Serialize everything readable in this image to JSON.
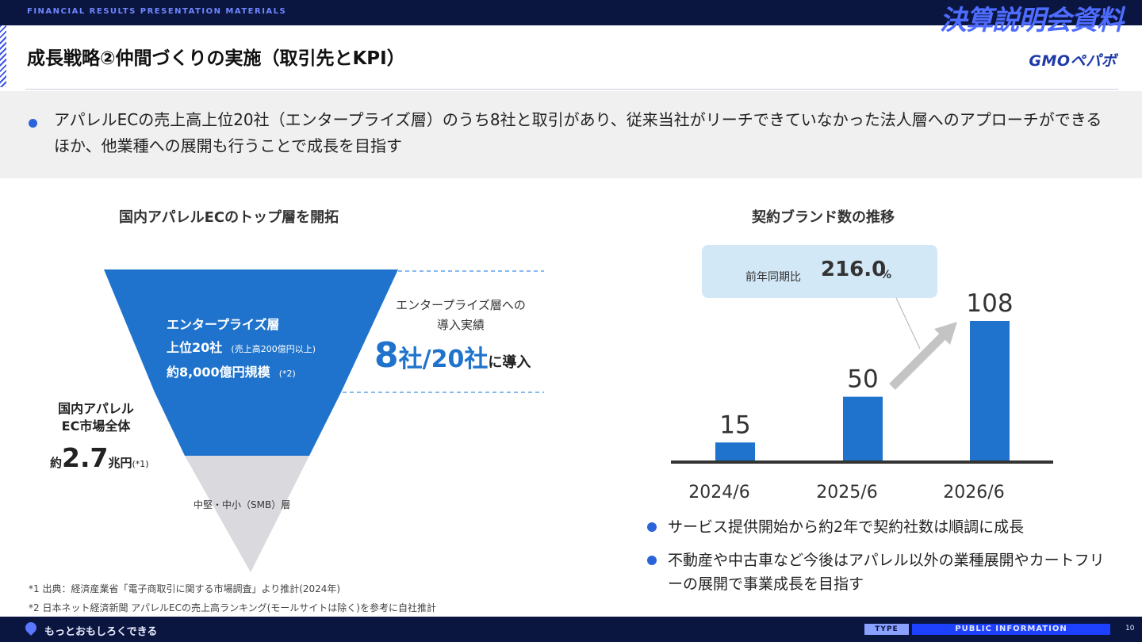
{
  "header": {
    "top_label": "FINANCIAL RESULTS PRESENTATION MATERIALS",
    "top_right": "決算説明会資料",
    "title": "成長戦略②仲間づくりの実施（取引先とKPI）",
    "logo": "GMOペパボ"
  },
  "summary": {
    "text": "アパレルECの売上高上位20社（エンタープライズ層）のうち8社と取引があり、従来当社がリーチできていなかった法人層へのアプローチができるほか、他業種への展開も行うことで成長を目指す"
  },
  "left": {
    "heading": "国内アパレルECのトップ層を開拓",
    "enterprise": {
      "line1": "エンタープライズ層",
      "line2_main": "上位20社",
      "line2_note": "(売上高200億円以上)",
      "line3_main": "約8,000億円規模",
      "line3_note": "(*2)"
    },
    "market": {
      "line1": "国内アパレル",
      "line2": "EC市場全体",
      "prefix": "約",
      "value": "2.7",
      "unit": "兆円",
      "note": "(*1)"
    },
    "smb_label": "中堅・中小（SMB）層",
    "intro": {
      "line1": "エンタープライズ層への",
      "line2": "導入実績",
      "count": "8",
      "count_unit": "社/",
      "total": "20社",
      "suffix": "に導入"
    }
  },
  "right": {
    "heading": "契約ブランド数の推移",
    "yoy": {
      "label": "前年同期比",
      "value": "216.0",
      "unit": "%"
    },
    "bullets": [
      "サービス提供開始から約2年で契約社数は順調に成長",
      "不動産や中古車など今後はアパレル以外の業種展開やカートフリーの展開で事業成長を目指す"
    ]
  },
  "chart_data": {
    "type": "bar",
    "title": "契約ブランド数の推移",
    "categories": [
      "2024/6",
      "2025/6",
      "2026/6"
    ],
    "values": [
      15,
      50,
      108
    ],
    "ylim": [
      0,
      108
    ],
    "bar_color": "#1f73cc",
    "grid": false
  },
  "footnotes": [
    "*1 出典：経済産業省「電子商取引に関する市場調査」より推計(2024年)",
    "*2 日本ネット経済新聞 アパレルECの売上高ランキング(モールサイトは除く)を参考に自社推計"
  ],
  "footer": {
    "slogan": "もっとおもしろくできる",
    "type_label": "TYPE",
    "public_label": "PUBLIC INFORMATION",
    "page_number": "10"
  },
  "colors": {
    "navy": "#0b1640",
    "accent_blue": "#1f73cc",
    "funnel_gray": "#d9d9de",
    "yoy_bg": "#d3e8f7"
  }
}
